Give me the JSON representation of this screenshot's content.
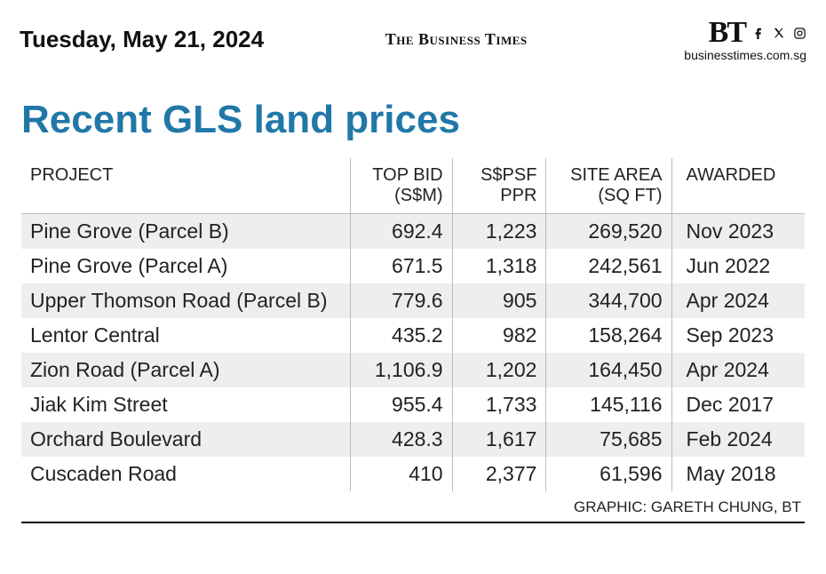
{
  "header": {
    "date": "Tuesday, May 21, 2024",
    "masthead": "The Business Times",
    "logo": "BT",
    "url": "businesstimes.com.sg"
  },
  "title": "Recent GLS land prices",
  "columns": {
    "project": "PROJECT",
    "top_bid_l1": "TOP BID",
    "top_bid_l2": "(S$M)",
    "psf_l1": "S$PSF",
    "psf_l2": "PPR",
    "area_l1": "SITE AREA",
    "area_l2": "(SQ FT)",
    "awarded": "AWARDED"
  },
  "rows": [
    {
      "project": "Pine Grove (Parcel B)",
      "top_bid": "692.4",
      "psf": "1,223",
      "area": "269,520",
      "awarded": "Nov 2023"
    },
    {
      "project": "Pine Grove (Parcel A)",
      "top_bid": "671.5",
      "psf": "1,318",
      "area": "242,561",
      "awarded": "Jun 2022"
    },
    {
      "project": "Upper Thomson Road (Parcel B)",
      "top_bid": "779.6",
      "psf": "905",
      "area": "344,700",
      "awarded": "Apr 2024"
    },
    {
      "project": "Lentor Central",
      "top_bid": "435.2",
      "psf": "982",
      "area": "158,264",
      "awarded": "Sep 2023"
    },
    {
      "project": "Zion Road (Parcel A)",
      "top_bid": "1,106.9",
      "psf": "1,202",
      "area": "164,450",
      "awarded": "Apr 2024"
    },
    {
      "project": "Jiak Kim Street",
      "top_bid": "955.4",
      "psf": "1,733",
      "area": "145,116",
      "awarded": "Dec 2017"
    },
    {
      "project": "Orchard Boulevard",
      "top_bid": "428.3",
      "psf": "1,617",
      "area": "75,685",
      "awarded": "Feb 2024"
    },
    {
      "project": "Cuscaden Road",
      "top_bid": "410",
      "psf": "2,377",
      "area": "61,596",
      "awarded": "May 2018"
    }
  ],
  "credit": "GRAPHIC: GARETH CHUNG, BT",
  "colors": {
    "title": "#2178a8",
    "row_stripe": "#eeeeee",
    "border": "#bbbbbb",
    "rule": "#000000"
  }
}
